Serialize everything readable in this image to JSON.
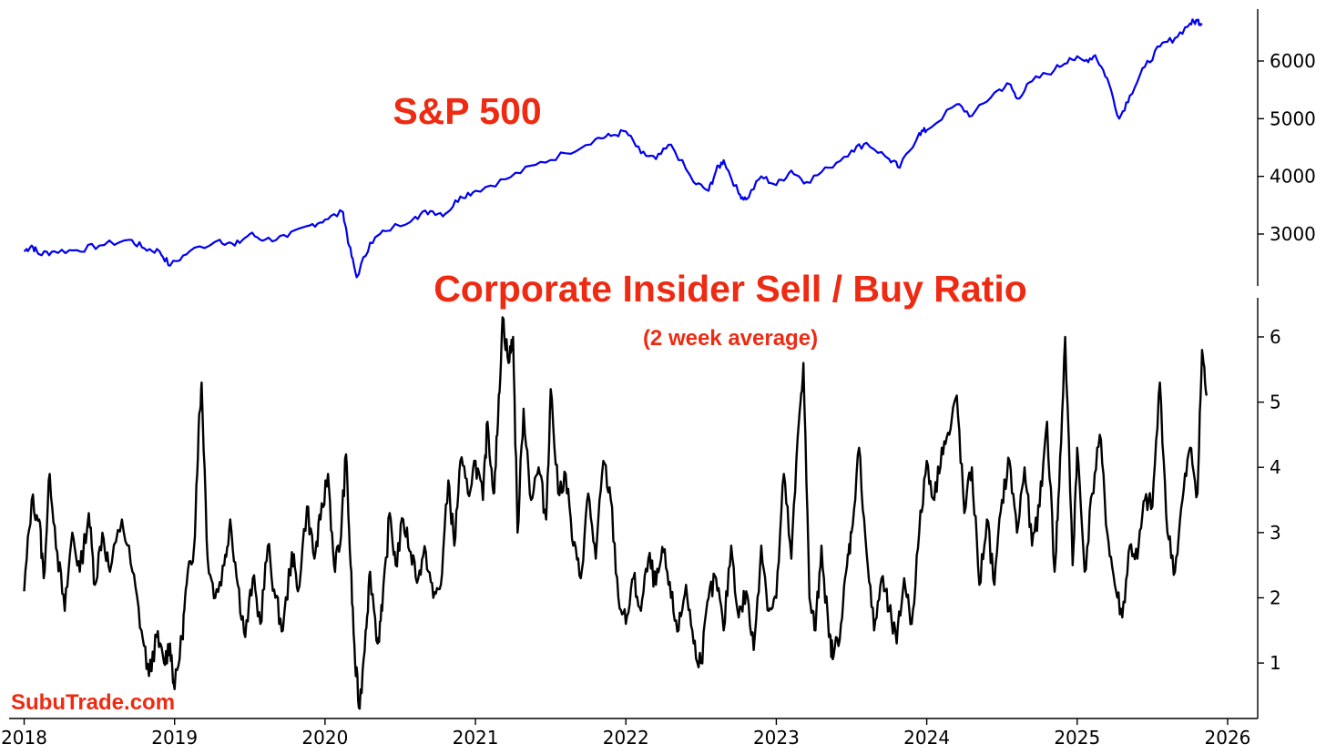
{
  "chart_data": [
    {
      "type": "line",
      "name": "sp500-panel",
      "title": "S&P 500",
      "title_color": "#ee2a12",
      "series": [
        {
          "name": "S&P 500",
          "color": "#0000ee"
        }
      ],
      "x_range": [
        2017.9,
        2026.2
      ],
      "ylim": [
        2100,
        6900
      ],
      "yticks": [
        3000,
        4000,
        5000,
        6000
      ],
      "points": [
        [
          2018.0,
          2700
        ],
        [
          2018.05,
          2800
        ],
        [
          2018.1,
          2650
        ],
        [
          2018.2,
          2700
        ],
        [
          2018.35,
          2720
        ],
        [
          2018.5,
          2800
        ],
        [
          2018.7,
          2900
        ],
        [
          2018.8,
          2750
        ],
        [
          2018.9,
          2700
        ],
        [
          2018.97,
          2450
        ],
        [
          2019.1,
          2700
        ],
        [
          2019.3,
          2900
        ],
        [
          2019.4,
          2800
        ],
        [
          2019.5,
          3000
        ],
        [
          2019.6,
          2900
        ],
        [
          2019.75,
          2950
        ],
        [
          2019.9,
          3150
        ],
        [
          2020.0,
          3250
        ],
        [
          2020.12,
          3380
        ],
        [
          2020.16,
          2800
        ],
        [
          2020.21,
          2250
        ],
        [
          2020.3,
          2850
        ],
        [
          2020.4,
          3050
        ],
        [
          2020.6,
          3300
        ],
        [
          2020.7,
          3400
        ],
        [
          2020.8,
          3350
        ],
        [
          2020.9,
          3650
        ],
        [
          2021.0,
          3750
        ],
        [
          2021.2,
          3950
        ],
        [
          2021.4,
          4200
        ],
        [
          2021.6,
          4400
        ],
        [
          2021.8,
          4650
        ],
        [
          2021.9,
          4700
        ],
        [
          2022.0,
          4780
        ],
        [
          2022.1,
          4400
        ],
        [
          2022.2,
          4300
        ],
        [
          2022.3,
          4550
        ],
        [
          2022.45,
          3900
        ],
        [
          2022.55,
          3750
        ],
        [
          2022.6,
          4100
        ],
        [
          2022.65,
          4280
        ],
        [
          2022.75,
          3700
        ],
        [
          2022.8,
          3600
        ],
        [
          2022.9,
          4000
        ],
        [
          2023.0,
          3850
        ],
        [
          2023.1,
          4100
        ],
        [
          2023.2,
          3900
        ],
        [
          2023.35,
          4150
        ],
        [
          2023.5,
          4450
        ],
        [
          2023.6,
          4580
        ],
        [
          2023.75,
          4300
        ],
        [
          2023.82,
          4150
        ],
        [
          2023.95,
          4750
        ],
        [
          2024.0,
          4800
        ],
        [
          2024.2,
          5250
        ],
        [
          2024.3,
          5050
        ],
        [
          2024.45,
          5450
        ],
        [
          2024.55,
          5600
        ],
        [
          2024.6,
          5350
        ],
        [
          2024.7,
          5650
        ],
        [
          2024.85,
          5850
        ],
        [
          2024.95,
          6050
        ],
        [
          2025.05,
          6000
        ],
        [
          2025.12,
          6100
        ],
        [
          2025.2,
          5700
        ],
        [
          2025.28,
          5000
        ],
        [
          2025.35,
          5400
        ],
        [
          2025.45,
          5900
        ],
        [
          2025.55,
          6250
        ],
        [
          2025.65,
          6400
        ],
        [
          2025.75,
          6650
        ],
        [
          2025.8,
          6700
        ],
        [
          2025.83,
          6650
        ]
      ]
    },
    {
      "type": "line",
      "name": "insider-ratio-panel",
      "title": "Corporate Insider Sell / Buy Ratio",
      "subtitle": "(2 week average)",
      "title_color": "#ee2a12",
      "series": [
        {
          "name": "Sell / Buy Ratio",
          "color": "#000000"
        }
      ],
      "x_range": [
        2017.9,
        2026.2
      ],
      "xticks": [
        2018,
        2019,
        2020,
        2021,
        2022,
        2023,
        2024,
        2025,
        2026
      ],
      "ylim": [
        0.15,
        6.6
      ],
      "yticks": [
        1,
        2,
        3,
        4,
        5,
        6
      ],
      "points": [
        [
          2018.0,
          2.1
        ],
        [
          2018.05,
          3.5
        ],
        [
          2018.1,
          3.2
        ],
        [
          2018.13,
          2.3
        ],
        [
          2018.17,
          3.9
        ],
        [
          2018.22,
          2.7
        ],
        [
          2018.27,
          1.8
        ],
        [
          2018.32,
          3.0
        ],
        [
          2018.37,
          2.4
        ],
        [
          2018.43,
          3.3
        ],
        [
          2018.47,
          2.2
        ],
        [
          2018.52,
          3.0
        ],
        [
          2018.57,
          2.4
        ],
        [
          2018.65,
          3.2
        ],
        [
          2018.72,
          2.4
        ],
        [
          2018.78,
          1.5
        ],
        [
          2018.83,
          0.8
        ],
        [
          2018.88,
          1.4
        ],
        [
          2018.93,
          1.0
        ],
        [
          2018.97,
          1.3
        ],
        [
          2019.0,
          0.6
        ],
        [
          2019.05,
          1.4
        ],
        [
          2019.08,
          2.2
        ],
        [
          2019.13,
          2.8
        ],
        [
          2019.16,
          4.6
        ],
        [
          2019.18,
          5.3
        ],
        [
          2019.22,
          2.6
        ],
        [
          2019.27,
          2.0
        ],
        [
          2019.33,
          2.5
        ],
        [
          2019.37,
          3.2
        ],
        [
          2019.42,
          2.2
        ],
        [
          2019.47,
          1.4
        ],
        [
          2019.52,
          2.3
        ],
        [
          2019.57,
          1.6
        ],
        [
          2019.62,
          2.8
        ],
        [
          2019.67,
          2.0
        ],
        [
          2019.72,
          1.5
        ],
        [
          2019.78,
          2.7
        ],
        [
          2019.82,
          2.1
        ],
        [
          2019.88,
          3.4
        ],
        [
          2019.93,
          2.6
        ],
        [
          2019.97,
          3.2
        ],
        [
          2020.02,
          3.9
        ],
        [
          2020.06,
          2.5
        ],
        [
          2020.1,
          2.8
        ],
        [
          2020.14,
          4.2
        ],
        [
          2020.17,
          2.5
        ],
        [
          2020.2,
          1.0
        ],
        [
          2020.23,
          0.3
        ],
        [
          2020.27,
          1.5
        ],
        [
          2020.3,
          2.4
        ],
        [
          2020.35,
          1.3
        ],
        [
          2020.38,
          1.8
        ],
        [
          2020.43,
          3.3
        ],
        [
          2020.47,
          2.5
        ],
        [
          2020.52,
          3.2
        ],
        [
          2020.57,
          2.7
        ],
        [
          2020.62,
          2.3
        ],
        [
          2020.67,
          2.7
        ],
        [
          2020.72,
          2.0
        ],
        [
          2020.77,
          2.2
        ],
        [
          2020.82,
          3.8
        ],
        [
          2020.86,
          2.8
        ],
        [
          2020.9,
          4.1
        ],
        [
          2020.95,
          3.6
        ],
        [
          2021.0,
          4.1
        ],
        [
          2021.05,
          3.5
        ],
        [
          2021.08,
          4.7
        ],
        [
          2021.12,
          3.6
        ],
        [
          2021.15,
          4.7
        ],
        [
          2021.18,
          6.3
        ],
        [
          2021.22,
          5.6
        ],
        [
          2021.25,
          6.0
        ],
        [
          2021.28,
          3.0
        ],
        [
          2021.32,
          4.9
        ],
        [
          2021.37,
          3.5
        ],
        [
          2021.42,
          4.0
        ],
        [
          2021.47,
          3.2
        ],
        [
          2021.5,
          5.2
        ],
        [
          2021.55,
          3.6
        ],
        [
          2021.6,
          3.9
        ],
        [
          2021.65,
          2.8
        ],
        [
          2021.7,
          2.3
        ],
        [
          2021.75,
          3.6
        ],
        [
          2021.8,
          2.6
        ],
        [
          2021.85,
          4.1
        ],
        [
          2021.9,
          3.5
        ],
        [
          2021.95,
          2.0
        ],
        [
          2022.0,
          1.6
        ],
        [
          2022.05,
          2.3
        ],
        [
          2022.1,
          1.8
        ],
        [
          2022.15,
          2.6
        ],
        [
          2022.2,
          2.2
        ],
        [
          2022.25,
          2.7
        ],
        [
          2022.3,
          2.0
        ],
        [
          2022.35,
          1.5
        ],
        [
          2022.4,
          2.2
        ],
        [
          2022.45,
          1.3
        ],
        [
          2022.5,
          1.0
        ],
        [
          2022.55,
          2.0
        ],
        [
          2022.6,
          2.3
        ],
        [
          2022.65,
          1.5
        ],
        [
          2022.7,
          2.8
        ],
        [
          2022.75,
          1.7
        ],
        [
          2022.8,
          2.1
        ],
        [
          2022.85,
          1.2
        ],
        [
          2022.9,
          2.8
        ],
        [
          2022.95,
          1.8
        ],
        [
          2023.0,
          2.0
        ],
        [
          2023.05,
          3.9
        ],
        [
          2023.1,
          2.6
        ],
        [
          2023.15,
          4.7
        ],
        [
          2023.18,
          5.6
        ],
        [
          2023.22,
          2.0
        ],
        [
          2023.26,
          1.5
        ],
        [
          2023.3,
          2.8
        ],
        [
          2023.35,
          1.4
        ],
        [
          2023.38,
          1.1
        ],
        [
          2023.43,
          1.6
        ],
        [
          2023.47,
          2.5
        ],
        [
          2023.5,
          3.0
        ],
        [
          2023.55,
          4.3
        ],
        [
          2023.6,
          2.7
        ],
        [
          2023.65,
          1.5
        ],
        [
          2023.7,
          2.3
        ],
        [
          2023.75,
          1.8
        ],
        [
          2023.8,
          1.3
        ],
        [
          2023.85,
          2.3
        ],
        [
          2023.9,
          1.6
        ],
        [
          2023.95,
          3.0
        ],
        [
          2024.0,
          4.1
        ],
        [
          2024.05,
          3.5
        ],
        [
          2024.1,
          4.3
        ],
        [
          2024.15,
          4.5
        ],
        [
          2024.2,
          5.1
        ],
        [
          2024.25,
          3.3
        ],
        [
          2024.3,
          4.0
        ],
        [
          2024.35,
          2.2
        ],
        [
          2024.4,
          3.2
        ],
        [
          2024.45,
          2.2
        ],
        [
          2024.5,
          3.5
        ],
        [
          2024.55,
          4.1
        ],
        [
          2024.6,
          3.0
        ],
        [
          2024.65,
          4.0
        ],
        [
          2024.7,
          2.8
        ],
        [
          2024.75,
          3.4
        ],
        [
          2024.8,
          4.7
        ],
        [
          2024.85,
          2.4
        ],
        [
          2024.88,
          3.7
        ],
        [
          2024.92,
          6.0
        ],
        [
          2024.97,
          2.5
        ],
        [
          2025.0,
          4.3
        ],
        [
          2025.05,
          2.4
        ],
        [
          2025.1,
          3.6
        ],
        [
          2025.15,
          4.5
        ],
        [
          2025.2,
          3.0
        ],
        [
          2025.25,
          2.2
        ],
        [
          2025.3,
          1.7
        ],
        [
          2025.35,
          2.8
        ],
        [
          2025.4,
          2.6
        ],
        [
          2025.45,
          3.5
        ],
        [
          2025.5,
          3.4
        ],
        [
          2025.55,
          5.3
        ],
        [
          2025.6,
          3.0
        ],
        [
          2025.65,
          2.4
        ],
        [
          2025.7,
          3.5
        ],
        [
          2025.75,
          4.3
        ],
        [
          2025.8,
          3.6
        ],
        [
          2025.83,
          5.8
        ],
        [
          2025.86,
          5.1
        ]
      ]
    }
  ],
  "watermark": "SubuTrade.com",
  "watermark_color": "#ee2a12"
}
